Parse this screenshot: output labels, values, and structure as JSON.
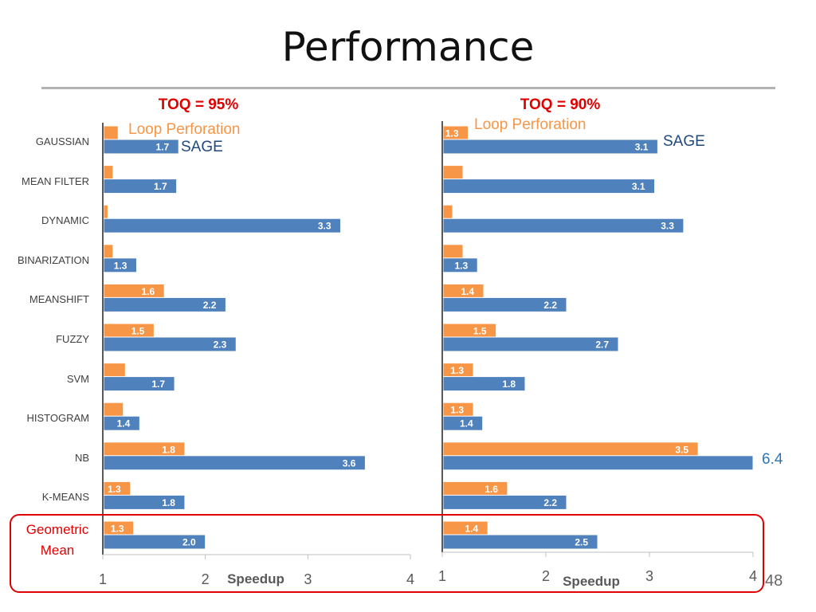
{
  "slide": {
    "title": "Performance",
    "page_number": "48"
  },
  "chart_data": [
    {
      "type": "bar",
      "title": "TOQ = 95%",
      "categories": [
        "GAUSSIAN",
        "MEAN FILTER",
        "DYNAMIC",
        "BINARIZATION",
        "MEANSHIFT",
        "FUZZY",
        "SVM",
        "HISTOGRAM",
        "NB",
        "K-MEANS",
        "Geometric Mean"
      ],
      "series": [
        {
          "name": "Loop Perforation",
          "color": "#f79646",
          "values": [
            1.15,
            1.1,
            1.05,
            1.1,
            1.6,
            1.5,
            1.22,
            1.2,
            1.8,
            1.27,
            1.3
          ],
          "labels": [
            "",
            "",
            "",
            "",
            "1.6",
            "1.5",
            "",
            "",
            "1.8",
            "1.3",
            "1.3"
          ]
        },
        {
          "name": "SAGE",
          "color": "#4f81bd",
          "values": [
            1.74,
            1.72,
            3.32,
            1.33,
            2.2,
            2.3,
            1.7,
            1.36,
            3.56,
            1.8,
            2.0
          ],
          "labels": [
            "1.7",
            "1.7",
            "3.3",
            "1.3",
            "2.2",
            "2.3",
            "1.7",
            "1.4",
            "3.6",
            "1.8",
            "2.0"
          ]
        }
      ],
      "xlabel": "Speedup",
      "xticks": [
        "1",
        "2",
        "3",
        "4"
      ],
      "xlim": [
        1,
        4
      ]
    },
    {
      "type": "bar",
      "title": "TOQ = 90%",
      "series": [
        {
          "name": "Loop Perforation",
          "color": "#f79646",
          "values": [
            1.25,
            1.2,
            1.1,
            1.2,
            1.4,
            1.52,
            1.3,
            1.3,
            3.47,
            1.63,
            1.44
          ],
          "labels": [
            "1.3",
            "",
            "",
            "",
            "1.4",
            "1.5",
            "1.3",
            "1.3",
            "3.5",
            "1.6",
            "1.4"
          ]
        },
        {
          "name": "SAGE",
          "color": "#4f81bd",
          "values": [
            3.08,
            3.05,
            3.33,
            1.34,
            2.2,
            2.7,
            1.8,
            1.39,
            4.0,
            2.2,
            2.5
          ],
          "labels": [
            "3.1",
            "3.1",
            "3.3",
            "1.3",
            "2.2",
            "2.7",
            "1.8",
            "1.4",
            "",
            "2.2",
            "2.5"
          ]
        }
      ],
      "xlabel": "Speedup",
      "xticks": [
        "1",
        "2",
        "3",
        "4"
      ],
      "xlim": [
        1,
        4
      ],
      "off_scale_note": "6.4"
    }
  ]
}
